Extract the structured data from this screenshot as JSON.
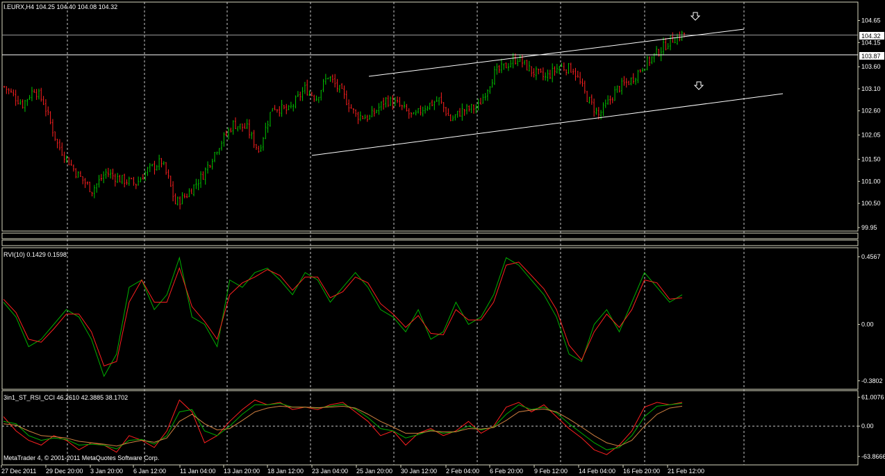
{
  "colors": {
    "background": "#000000",
    "bull": "#00c800",
    "bear": "#ff2020",
    "grid": "#c8c8c8",
    "frame": "#d8d8c0",
    "text": "#ffffff",
    "rvi_main": "#00b000",
    "rvi_signal": "#ff2020",
    "osc_red": "#ff2020",
    "osc_green": "#00b000",
    "osc_orange": "#d08040"
  },
  "main": {
    "header": "I.EURX,H4  104.25 104.40 104.08 104.32",
    "price_label": "104.32",
    "level_label": "103.87",
    "arrow_icon": "down-arrow-icon",
    "footer": "MetaTrader 4, © 2001-2011 MetaQuotes Software Corp."
  },
  "rvi": {
    "header": "RVI(10) 0.1429 0.1598"
  },
  "osc": {
    "header": "3in1_ST_RSI_CCI 46.2610 42.3885 38.1702"
  },
  "chart_data": [
    {
      "type": "candlestick",
      "title": "I.EURX,H4",
      "y_ticks": [
        99.95,
        100.5,
        101.0,
        101.5,
        102.05,
        102.6,
        103.1,
        103.6,
        104.15,
        104.65
      ],
      "ylim": [
        99.95,
        104.8
      ],
      "last_price": 104.32,
      "horizontal_level": 103.87,
      "x_labels": [
        "27 Dec 2011",
        "29 Dec 20:00",
        "3 Jan 20:00",
        "6 Jan 12:00",
        "11 Jan 04:00",
        "13 Jan 20:00",
        "18 Jan 12:00",
        "23 Jan 04:00",
        "25 Jan 20:00",
        "30 Jan 12:00",
        "2 Feb 04:00",
        "6 Feb 20:00",
        "9 Feb 12:00",
        "14 Feb 04:00",
        "16 Feb 20:00",
        "21 Feb 12:00"
      ],
      "close_path": [
        [
          0,
          103.15
        ],
        [
          8,
          102.75
        ],
        [
          13,
          103.1
        ],
        [
          17,
          102.8
        ],
        [
          23,
          101.85
        ],
        [
          31,
          101.2
        ],
        [
          38,
          100.8
        ],
        [
          44,
          101.2
        ],
        [
          50,
          101.05
        ],
        [
          57,
          100.95
        ],
        [
          62,
          101.25
        ],
        [
          68,
          101.45
        ],
        [
          71,
          101.05
        ],
        [
          74,
          100.5
        ],
        [
          79,
          100.7
        ],
        [
          86,
          101.15
        ],
        [
          92,
          101.75
        ],
        [
          99,
          102.3
        ],
        [
          105,
          102.2
        ],
        [
          110,
          101.7
        ],
        [
          116,
          102.7
        ],
        [
          123,
          102.6
        ],
        [
          130,
          103.1
        ],
        [
          135,
          102.9
        ],
        [
          140,
          103.4
        ],
        [
          146,
          103.0
        ],
        [
          152,
          102.5
        ],
        [
          158,
          102.45
        ],
        [
          165,
          102.85
        ],
        [
          170,
          102.75
        ],
        [
          177,
          102.45
        ],
        [
          182,
          102.7
        ],
        [
          188,
          102.85
        ],
        [
          193,
          102.4
        ],
        [
          198,
          102.6
        ],
        [
          205,
          102.7
        ],
        [
          212,
          103.45
        ],
        [
          219,
          103.7
        ],
        [
          222,
          103.8
        ],
        [
          228,
          103.5
        ],
        [
          234,
          103.35
        ],
        [
          240,
          103.6
        ],
        [
          246,
          103.55
        ],
        [
          252,
          102.9
        ],
        [
          257,
          102.5
        ],
        [
          260,
          102.7
        ],
        [
          265,
          103.1
        ],
        [
          271,
          103.3
        ],
        [
          276,
          103.6
        ],
        [
          282,
          103.9
        ],
        [
          288,
          104.2
        ],
        [
          294,
          104.35
        ]
      ]
    },
    {
      "type": "line",
      "title": "RVI(10)",
      "y_ticks": [
        0.4567,
        0.0,
        -0.3802
      ],
      "ylim": [
        -0.4,
        0.48
      ],
      "series": [
        {
          "name": "RVI main",
          "values": [
            0.15,
            0.05,
            -0.15,
            -0.1,
            0.0,
            0.1,
            0.05,
            -0.1,
            -0.35,
            -0.2,
            0.25,
            0.3,
            0.1,
            0.2,
            0.45,
            0.05,
            0.0,
            -0.15,
            0.3,
            0.25,
            0.35,
            0.38,
            0.3,
            0.2,
            0.35,
            0.3,
            0.15,
            0.25,
            0.35,
            0.25,
            0.1,
            0.05,
            -0.05,
            0.1,
            -0.1,
            -0.05,
            0.15,
            0.0,
            0.05,
            0.2,
            0.45,
            0.4,
            0.3,
            0.2,
            0.05,
            -0.2,
            -0.25,
            0.0,
            0.1,
            -0.05,
            0.15,
            0.35,
            0.25,
            0.15,
            0.2
          ]
        },
        {
          "name": "RVI signal",
          "values": [
            0.17,
            0.08,
            -0.1,
            -0.12,
            -0.03,
            0.07,
            0.07,
            -0.05,
            -0.28,
            -0.25,
            0.15,
            0.3,
            0.15,
            0.15,
            0.38,
            0.12,
            0.02,
            -0.1,
            0.2,
            0.28,
            0.32,
            0.37,
            0.33,
            0.23,
            0.32,
            0.32,
            0.18,
            0.22,
            0.32,
            0.28,
            0.14,
            0.07,
            -0.02,
            0.06,
            -0.06,
            -0.07,
            0.1,
            0.03,
            0.03,
            0.15,
            0.4,
            0.42,
            0.33,
            0.24,
            0.1,
            -0.14,
            -0.24,
            -0.05,
            0.07,
            -0.02,
            0.1,
            0.3,
            0.28,
            0.17,
            0.18
          ]
        }
      ]
    },
    {
      "type": "line",
      "title": "3in1_ST_RSI_CCI",
      "y_ticks": [
        61.0076,
        0.0,
        -63.8666
      ],
      "ylim": [
        -70,
        66
      ],
      "series": [
        {
          "name": "line 1",
          "values": [
            20,
            -10,
            -30,
            -40,
            -20,
            -30,
            -50,
            -35,
            -40,
            -55,
            -20,
            -30,
            -45,
            -10,
            55,
            30,
            -35,
            -20,
            10,
            35,
            55,
            45,
            50,
            35,
            40,
            35,
            45,
            50,
            30,
            10,
            -20,
            -10,
            -40,
            -15,
            -5,
            -20,
            -10,
            10,
            -15,
            0,
            40,
            50,
            30,
            45,
            20,
            -5,
            -25,
            -50,
            -60,
            -40,
            -10,
            40,
            50,
            45,
            50
          ]
        },
        {
          "name": "line 2",
          "values": [
            10,
            5,
            -20,
            -30,
            -25,
            -28,
            -40,
            -38,
            -40,
            -48,
            -30,
            -28,
            -38,
            -20,
            30,
            35,
            -10,
            -20,
            0,
            25,
            45,
            45,
            48,
            40,
            40,
            38,
            42,
            46,
            36,
            18,
            -5,
            -10,
            -25,
            -18,
            -8,
            -15,
            -12,
            0,
            -8,
            -2,
            25,
            45,
            35,
            40,
            28,
            5,
            -15,
            -35,
            -50,
            -45,
            -20,
            20,
            42,
            45,
            48
          ]
        },
        {
          "name": "line 3",
          "values": [
            5,
            2,
            -10,
            -20,
            -22,
            -25,
            -32,
            -35,
            -38,
            -42,
            -35,
            -30,
            -34,
            -25,
            10,
            25,
            5,
            -8,
            -5,
            12,
            30,
            38,
            42,
            40,
            40,
            39,
            40,
            42,
            38,
            25,
            10,
            -2,
            -15,
            -15,
            -10,
            -12,
            -12,
            -5,
            -6,
            -3,
            12,
            30,
            34,
            36,
            30,
            15,
            -2,
            -20,
            -35,
            -42,
            -30,
            0,
            25,
            38,
            42
          ]
        }
      ]
    }
  ]
}
